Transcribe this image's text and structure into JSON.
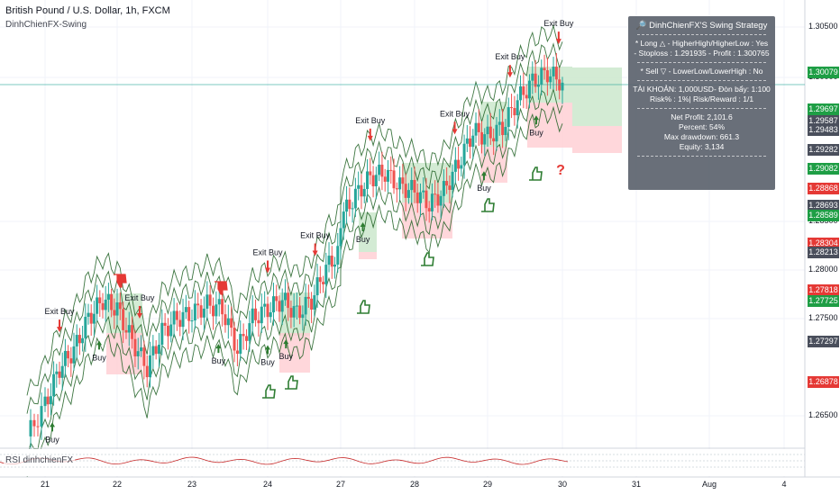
{
  "header": {
    "title": "British Pound / U.S. Dollar, 1h, FXCM",
    "indicator": "DinhChienFX-Swing"
  },
  "rsi_label": "RSI dinhchienFX",
  "info_box": {
    "title": "DinhChienFX'S Swing Strategy",
    "long_line": "* Long  △  - HigherHigh/HigherLow : Yes",
    "stop_line": "- Stoploss : 1.291935 - Profit : 1.300765",
    "sell_line": "* Sell  ▽  - LowerLow/LowerHigh : No",
    "account_line": "TÀI KHOẢN: 1,000USD- Đòn bẩy: 1:100",
    "risk_line": "Risk% : 1%| Risk/Reward : 1/1",
    "net_profit": "Net Profit: 2,101.6",
    "percent": "Percent: 54%",
    "max_drawdown": "Max drawdown: 661.3",
    "equity": "Equity: 3,134"
  },
  "colors": {
    "up": "#26a69a",
    "down": "#ef5350",
    "green_pill": "#1e9e45",
    "red_pill": "#e53935",
    "dark_pill": "#4a4f5c",
    "band": "#1b5e20",
    "long_zone": "#c8e6c9",
    "short_zone": "#ffcdd2"
  },
  "axis": {
    "price_ticks": [
      "1.30500",
      "1.30000",
      "1.28500",
      "1.28000",
      "1.27500",
      "1.26500"
    ],
    "date_ticks": [
      "21",
      "22",
      "23",
      "24",
      "27",
      "28",
      "29",
      "30",
      "31",
      "Aug",
      "4"
    ]
  },
  "price_pills": [
    {
      "label": "1.30079",
      "type": "green"
    },
    {
      "label": "1.29697",
      "type": "green"
    },
    {
      "label": "1.29587",
      "type": "dark"
    },
    {
      "label": "1.29483",
      "type": "dark"
    },
    {
      "label": "1.29282",
      "type": "dark"
    },
    {
      "label": "1.29082",
      "type": "green"
    },
    {
      "label": "1.28868",
      "type": "red"
    },
    {
      "label": "1.28693",
      "type": "dark"
    },
    {
      "label": "1.28589",
      "type": "green"
    },
    {
      "label": "1.28304",
      "type": "red"
    },
    {
      "label": "1.28213",
      "type": "dark"
    },
    {
      "label": "1.27818",
      "type": "red"
    },
    {
      "label": "1.27725",
      "type": "green"
    },
    {
      "label": "1.27297",
      "type": "dark"
    },
    {
      "label": "1.26878",
      "type": "red"
    }
  ],
  "signals": {
    "buy": [
      {
        "label": "Buy",
        "date": 21.1
      },
      {
        "label": "Buy",
        "date": 21.75
      },
      {
        "label": "Buy",
        "date": 23.35
      },
      {
        "label": "Buy",
        "date": 24.0
      },
      {
        "label": "Buy",
        "date": 24.25
      },
      {
        "label": "Buy",
        "date": 27.3
      },
      {
        "label": "Buy",
        "date": 28.95
      },
      {
        "label": "Buy",
        "date": 29.65
      }
    ],
    "exit_buy": [
      {
        "label": "Exit Buy",
        "date": 21.2
      },
      {
        "label": "Exit Buy",
        "date": 22.3
      },
      {
        "label": "Exit Buy",
        "date": 24.0
      },
      {
        "label": "Exit Buy",
        "date": 24.65
      },
      {
        "label": "Exit Buy",
        "date": 27.4
      },
      {
        "label": "Exit Buy",
        "date": 28.55
      },
      {
        "label": "Exit Buy",
        "date": 29.3
      },
      {
        "label": "Exit Buy",
        "date": 29.95
      }
    ]
  },
  "chart_data": {
    "type": "candlestick",
    "title": "British Pound / U.S. Dollar, 1h, FXCM",
    "x_unit": "day of month (July)",
    "ylim": [
      1.2595,
      1.3075
    ],
    "current_price": 1.29942,
    "series": [
      {
        "name": "GBPUSD",
        "x": [
          20.8,
          21.0,
          21.2,
          21.4,
          21.6,
          21.8,
          22.0,
          22.2,
          22.4,
          22.6,
          22.8,
          23.0,
          23.2,
          23.4,
          23.6,
          23.8,
          24.0,
          24.2,
          24.4,
          24.6,
          24.8,
          25.0,
          27.0,
          27.2,
          27.4,
          27.6,
          27.8,
          28.0,
          28.2,
          28.4,
          28.6,
          28.8,
          29.0,
          29.2,
          29.4,
          29.6,
          29.8,
          30.0
        ],
        "close": [
          1.2605,
          1.264,
          1.268,
          1.27,
          1.2735,
          1.2755,
          1.2745,
          1.271,
          1.268,
          1.272,
          1.2735,
          1.274,
          1.275,
          1.2745,
          1.27,
          1.2735,
          1.2745,
          1.2755,
          1.274,
          1.2755,
          1.279,
          1.281,
          1.2845,
          1.287,
          1.289,
          1.2895,
          1.288,
          1.2875,
          1.286,
          1.2875,
          1.2905,
          1.294,
          1.2935,
          1.2945,
          1.2975,
          1.2995,
          1.3005,
          1.2994
        ]
      }
    ]
  }
}
